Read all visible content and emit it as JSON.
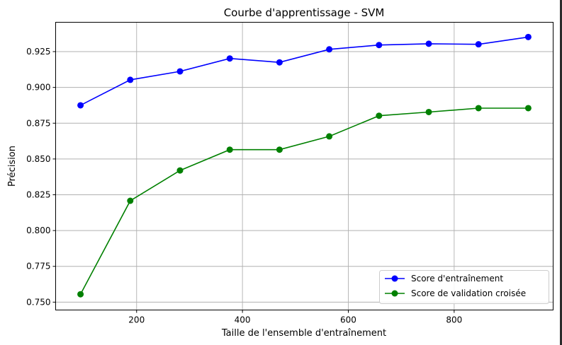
{
  "chart_data": {
    "type": "line",
    "title": "Courbe d'apprentissage - SVM",
    "xlabel": "Taille de l'ensemble d'entraînement",
    "ylabel": "Précision",
    "xlim": [
      47,
      987
    ],
    "ylim": [
      0.7445,
      0.9455
    ],
    "xticks": [
      200,
      400,
      600,
      800
    ],
    "yticks": [
      0.75,
      0.775,
      0.8,
      0.825,
      0.85,
      0.875,
      0.9,
      0.925
    ],
    "ytick_labels": [
      "0.750",
      "0.775",
      "0.800",
      "0.825",
      "0.850",
      "0.875",
      "0.900",
      "0.925"
    ],
    "grid": true,
    "legend_position": "lower-right",
    "x": [
      94,
      188,
      282,
      376,
      470,
      564,
      658,
      752,
      846,
      940
    ],
    "series": [
      {
        "name": "Score d'entraînement",
        "color": "#0000ff",
        "marker": "circle",
        "values": [
          0.8875,
          0.9053,
          0.9112,
          0.9202,
          0.9175,
          0.9266,
          0.9296,
          0.9305,
          0.9301,
          0.9352
        ]
      },
      {
        "name": "Score de validation croisée",
        "color": "#008000",
        "marker": "circle",
        "values": [
          0.7555,
          0.8208,
          0.842,
          0.8565,
          0.8565,
          0.8658,
          0.8802,
          0.8828,
          0.8855,
          0.8855
        ]
      }
    ]
  }
}
